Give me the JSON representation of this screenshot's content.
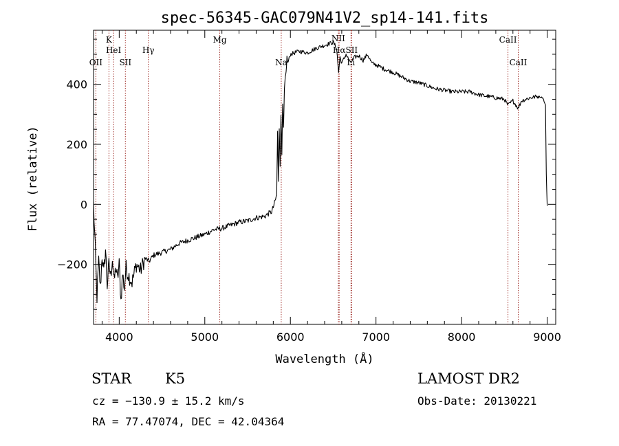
{
  "chart_data": {
    "type": "line",
    "title": "spec-56345-GAC079N41V2_sp14-141.fits",
    "xlabel": "Wavelength (Å)",
    "ylabel": "Flux (relative)",
    "xlim": [
      3700,
      9100
    ],
    "ylim": [
      -400,
      580
    ],
    "x_ticks": [
      {
        "value": 4000,
        "label": "4000"
      },
      {
        "value": 5000,
        "label": "5000"
      },
      {
        "value": 6000,
        "label": "6000"
      },
      {
        "value": 7000,
        "label": "7000"
      },
      {
        "value": 8000,
        "label": "8000"
      },
      {
        "value": 9000,
        "label": "9000"
      }
    ],
    "y_ticks": [
      {
        "value": -200,
        "label": "−200"
      },
      {
        "value": 0,
        "label": "0"
      },
      {
        "value": 200,
        "label": "200"
      },
      {
        "value": 400,
        "label": "400"
      }
    ],
    "grid": false,
    "series": [
      {
        "color": "#000000",
        "x": [
          3700,
          3720,
          3740,
          3760,
          3780,
          3800,
          3820,
          3840,
          3860,
          3880,
          3900,
          3920,
          3940,
          3960,
          3980,
          4000,
          4020,
          4040,
          4060,
          4080,
          4100,
          4150,
          4200,
          4250,
          4300,
          4350,
          4400,
          4500,
          4600,
          4700,
          4800,
          4900,
          5000,
          5100,
          5200,
          5300,
          5400,
          5500,
          5600,
          5700,
          5750,
          5780,
          5800,
          5820,
          5840,
          5850,
          5860,
          5870,
          5880,
          5890,
          5900,
          5910,
          5920,
          5930,
          5940,
          5950,
          5960,
          5970,
          6000,
          6100,
          6200,
          6300,
          6400,
          6500,
          6540,
          6563,
          6580,
          6600,
          6650,
          6700,
          6750,
          6800,
          6850,
          6900,
          6950,
          7000,
          7100,
          7200,
          7300,
          7400,
          7500,
          7600,
          7700,
          7800,
          7900,
          8000,
          8100,
          8200,
          8300,
          8400,
          8500,
          8542,
          8600,
          8662,
          8700,
          8800,
          8900,
          8950,
          8980,
          8990,
          9000
        ],
        "y": [
          0,
          -150,
          -310,
          -190,
          -280,
          -170,
          -230,
          -150,
          -270,
          -200,
          -240,
          -180,
          -260,
          -210,
          -250,
          -200,
          -320,
          -230,
          -280,
          -210,
          -230,
          -260,
          -200,
          -220,
          -180,
          -190,
          -170,
          -160,
          -150,
          -130,
          -120,
          -110,
          -100,
          -85,
          -80,
          -70,
          -60,
          -55,
          -45,
          -40,
          -30,
          -25,
          -10,
          10,
          30,
          240,
          80,
          260,
          120,
          300,
          170,
          330,
          250,
          380,
          420,
          440,
          490,
          470,
          500,
          510,
          505,
          520,
          530,
          540,
          520,
          440,
          490,
          470,
          500,
          470,
          490,
          495,
          480,
          500,
          470,
          465,
          450,
          440,
          425,
          410,
          405,
          395,
          385,
          380,
          375,
          375,
          375,
          365,
          360,
          355,
          350,
          330,
          345,
          320,
          345,
          355,
          360,
          355,
          330,
          100,
          -5
        ]
      }
    ],
    "line_markers": [
      {
        "x": 3727,
        "label": "OII",
        "tier": 3
      },
      {
        "x": 3880,
        "label": "K",
        "tier": 1
      },
      {
        "x": 3934,
        "label": "HeI",
        "tier": 2
      },
      {
        "x": 4072,
        "label": "SII",
        "tier": 3
      },
      {
        "x": 4340,
        "label": "Hγ",
        "tier": 2
      },
      {
        "x": 5175,
        "label": "Mg",
        "tier": 1
      },
      {
        "x": 5893,
        "label": "Na",
        "tier": 3
      },
      {
        "x": 6560,
        "label": "NII",
        "tier": 0
      },
      {
        "x": 6570,
        "label": "Hα",
        "tier": 2
      },
      {
        "x": 6716,
        "label": "SII",
        "tier": 2
      },
      {
        "x": 6708,
        "label": "Li",
        "tier": 3
      },
      {
        "x": 8542,
        "label": "CaII",
        "tier": 1
      },
      {
        "x": 8662,
        "label": "CaII",
        "tier": 3
      }
    ]
  },
  "info": {
    "class_label": "STAR",
    "subclass": "K5",
    "survey": "LAMOST DR2",
    "redshift": "cz = −130.9 ± 15.2 km/s",
    "obs_date": "Obs-Date: 20130221",
    "coords": "RA =  77.47074, DEC =  42.04364"
  }
}
